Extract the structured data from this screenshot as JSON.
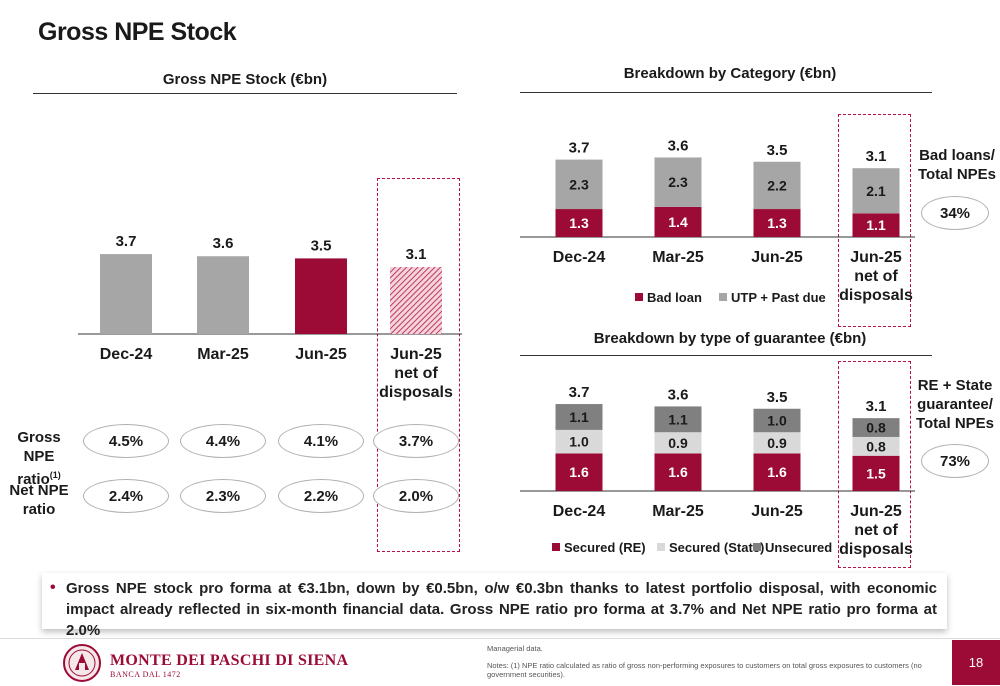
{
  "page_title": "Gross NPE Stock",
  "colors": {
    "primary": "#9c0b35",
    "grey": "#a6a6a6",
    "light_grey": "#d9d9d9",
    "dark_grey": "#808080"
  },
  "chart_data": [
    {
      "type": "bar",
      "title": "Gross NPE Stock (€bn)",
      "categories": [
        "Dec-24",
        "Mar-25",
        "Jun-25",
        "Jun-25 net of disposals"
      ],
      "values": [
        3.7,
        3.6,
        3.5,
        3.1
      ],
      "value_labels": [
        "3.7",
        "3.6",
        "3.5",
        "3.1"
      ],
      "bar_styles": [
        "grey",
        "grey",
        "primary",
        "hatched"
      ]
    },
    {
      "type": "bar",
      "stacked": true,
      "title": "Breakdown by Category (€bn)",
      "categories": [
        "Dec-24",
        "Mar-25",
        "Jun-25",
        "Jun-25 net of disposals"
      ],
      "series": [
        {
          "name": "Bad loan",
          "values": [
            1.3,
            1.4,
            1.3,
            1.1
          ],
          "color": "#9c0b35"
        },
        {
          "name": "UTP + Past due",
          "values": [
            2.3,
            2.3,
            2.2,
            2.1
          ],
          "color": "#a6a6a6"
        }
      ],
      "totals": [
        "3.7",
        "3.6",
        "3.5",
        "3.1"
      ],
      "legend": "bottom"
    },
    {
      "type": "bar",
      "stacked": true,
      "title": "Breakdown by type of guarantee (€bn)",
      "categories": [
        "Dec-24",
        "Mar-25",
        "Jun-25",
        "Jun-25 net of disposals"
      ],
      "series": [
        {
          "name": "Secured (RE)",
          "values": [
            1.6,
            1.6,
            1.6,
            1.5
          ],
          "color": "#9c0b35"
        },
        {
          "name": "Secured (State)",
          "values": [
            1.0,
            0.9,
            0.9,
            0.8
          ],
          "color": "#d9d9d9"
        },
        {
          "name": "Unsecured",
          "values": [
            1.1,
            1.1,
            1.0,
            0.8
          ],
          "color": "#808080"
        }
      ],
      "totals": [
        "3.7",
        "3.6",
        "3.5",
        "3.1"
      ],
      "legend": "bottom"
    }
  ],
  "ratios": {
    "gross_label": "Gross NPE",
    "gross_label_2": "ratio",
    "gross_sup": "(1)",
    "gross_values": [
      "4.5%",
      "4.4%",
      "4.1%",
      "3.7%"
    ],
    "net_label": "Net NPE",
    "net_label_2": "ratio",
    "net_values": [
      "2.4%",
      "2.3%",
      "2.2%",
      "2.0%"
    ]
  },
  "side": {
    "bad_loans_label_1": "Bad loans/",
    "bad_loans_label_2": "Total NPEs",
    "bad_loans_value": "34%",
    "re_label_1": "RE + State",
    "re_label_2": "guarantee/",
    "re_label_3": "Total NPEs",
    "re_value": "73%"
  },
  "bullet": "Gross NPE stock pro forma at €3.1bn, down by €0.5bn, o/w €0.3bn thanks to latest portfolio disposal, with economic impact already reflected in six-month financial data. Gross NPE ratio pro forma at 3.7% and Net NPE ratio pro forma at 2.0%",
  "footer": {
    "logo_name": "MONTE DEI PASCHI DI SIENA",
    "logo_sub": "BANCA DAL 1472",
    "note_1": "Managerial data.",
    "note_2": "Notes: (1) NPE ratio calculated as ratio of gross non-performing exposures to customers on total gross exposures to customers (no government securities).",
    "page_number": "18"
  }
}
